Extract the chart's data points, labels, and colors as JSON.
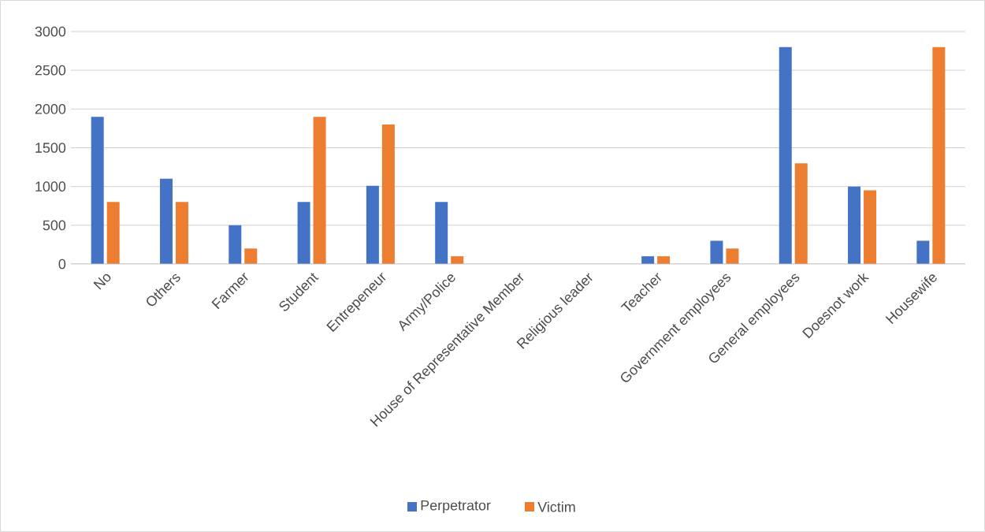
{
  "chart_data": {
    "type": "bar",
    "categories": [
      "No",
      "Others",
      "Farmer",
      "Student",
      "Entrepeneur",
      "Army/Police",
      "House of Representative Member",
      "Religious leader",
      "Teacher",
      "Government employees",
      "General employees",
      "Doesnot work",
      "Housewife"
    ],
    "series": [
      {
        "name": "Perpetrator",
        "color": "#4472c4",
        "values": [
          1900,
          1100,
          500,
          800,
          1010,
          800,
          0,
          0,
          100,
          300,
          2800,
          1000,
          300
        ]
      },
      {
        "name": "Victim",
        "color": "#ed7d31",
        "values": [
          800,
          800,
          200,
          1900,
          1800,
          100,
          0,
          0,
          100,
          200,
          1300,
          950,
          2800
        ]
      }
    ],
    "ylim": [
      0,
      3000
    ],
    "yticks": [
      0,
      500,
      1000,
      1500,
      2000,
      2500,
      3000
    ],
    "grid": "y",
    "legend": "bottom"
  }
}
